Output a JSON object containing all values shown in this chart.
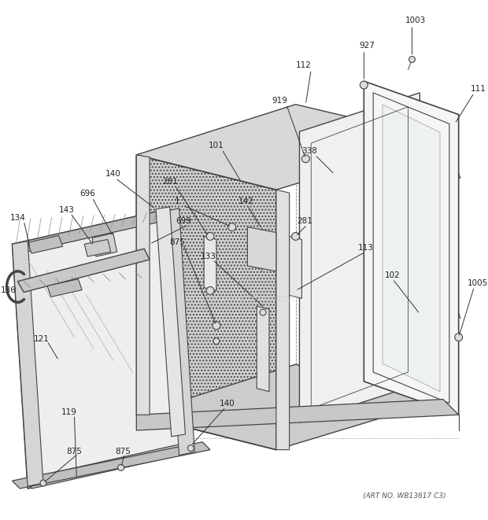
{
  "bg_color": "#ffffff",
  "line_color": "#444444",
  "art_no": "(ART NO. WB13617 C3)",
  "watermark": "eReplacementParts.com",
  "figsize": [
    6.2,
    6.61
  ],
  "dpi": 100
}
